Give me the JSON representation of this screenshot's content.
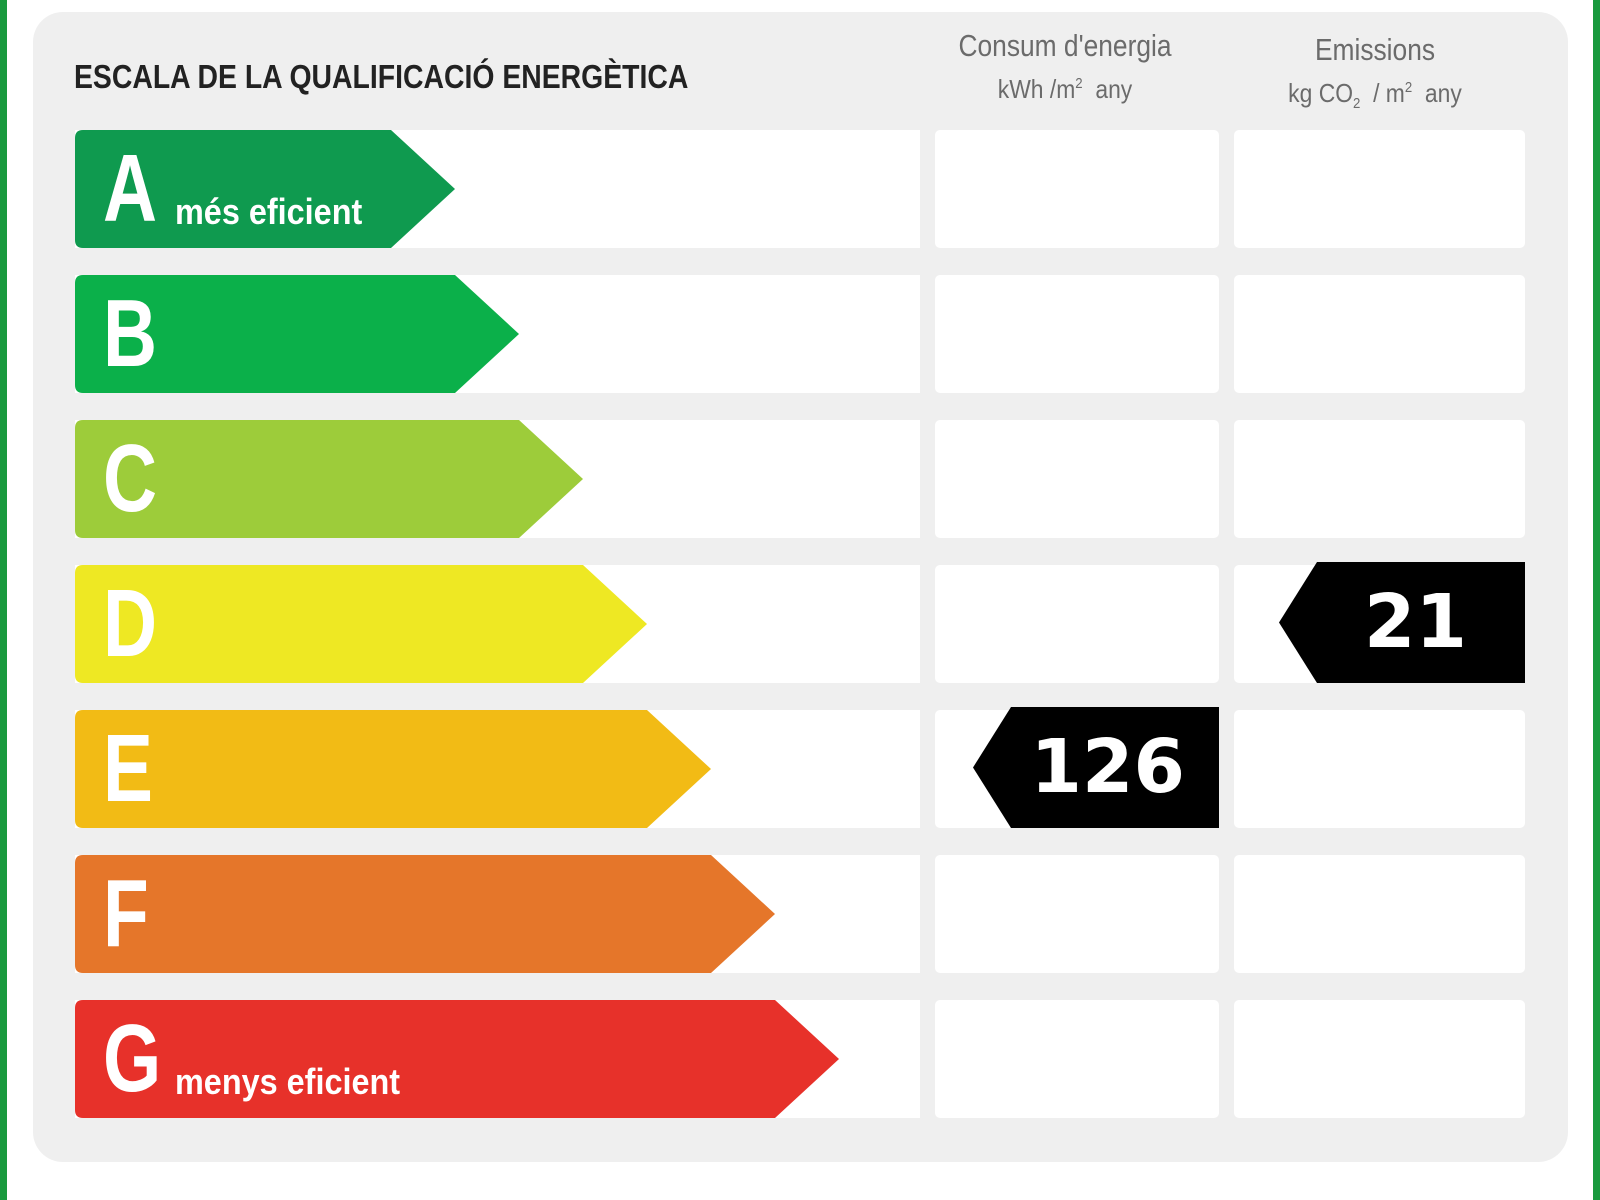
{
  "title": "ESCALA DE LA QUALIFICACIÓ ENERGÈTICA",
  "columns": {
    "consum": {
      "title": "Consum d'energia",
      "unit_kwh": "kWh /m",
      "unit_sup": "2",
      "unit_any": "any"
    },
    "emissions": {
      "title": "Emissions",
      "unit_kg": "kg CO",
      "unit_sub": "2",
      "unit_slash": "/ m",
      "unit_sup": "2",
      "unit_any": "any"
    }
  },
  "ratings": [
    {
      "letter": "A",
      "label": "més eficient",
      "color": "#0f9a4f"
    },
    {
      "letter": "B",
      "label": "",
      "color": "#0bb04a"
    },
    {
      "letter": "C",
      "label": "",
      "color": "#9dcc3a"
    },
    {
      "letter": "D",
      "label": "",
      "color": "#eee823"
    },
    {
      "letter": "E",
      "label": "",
      "color": "#f2bb15"
    },
    {
      "letter": "F",
      "label": "",
      "color": "#e5762a"
    },
    {
      "letter": "G",
      "label": "menys eficient",
      "color": "#e7312a"
    }
  ],
  "indicators": {
    "consum": {
      "value": "126",
      "rating": "E"
    },
    "emissions": {
      "value": "21",
      "rating": "D"
    }
  },
  "colors": {
    "frame": "#1a9a3e",
    "panel": "#efefef",
    "marker": "#000000"
  }
}
